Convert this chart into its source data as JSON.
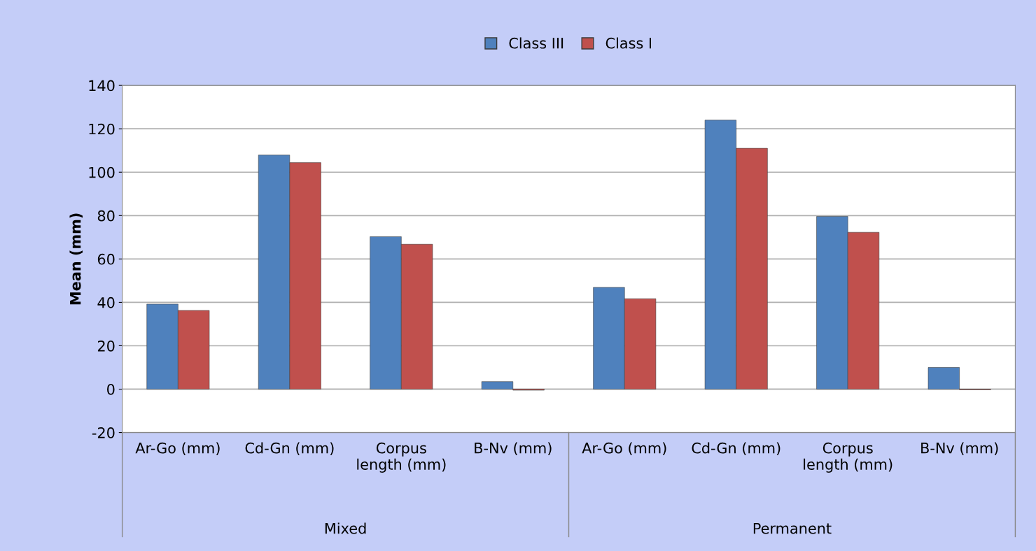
{
  "chart_data": {
    "type": "bar",
    "ylabel": "Mean (mm)",
    "categories": [
      "Ar-Go (mm)",
      "Cd-Gn (mm)",
      "Corpus\nlength (mm)",
      "B-Nv (mm)",
      "Ar-Go (mm)",
      "Cd-Gn (mm)",
      "Corpus\nlength (mm)",
      "B-Nv (mm)"
    ],
    "series": [
      {
        "name": "Class III",
        "color": "#4f81bd",
        "values": [
          39.2,
          107.9,
          70.3,
          3.5,
          46.9,
          124,
          79.6,
          10
        ]
      },
      {
        "name": "Class I",
        "color": "#c0504d",
        "values": [
          36.3,
          104.4,
          66.8,
          -0.5,
          41.7,
          111,
          72.3,
          -0.3
        ]
      }
    ],
    "ylim": [
      -20,
      140
    ],
    "yticks": [
      -20,
      0,
      20,
      40,
      60,
      80,
      100,
      120,
      140
    ],
    "grid": "y",
    "legend": "top",
    "annotations": [
      "Mixed",
      "Permanent"
    ]
  }
}
